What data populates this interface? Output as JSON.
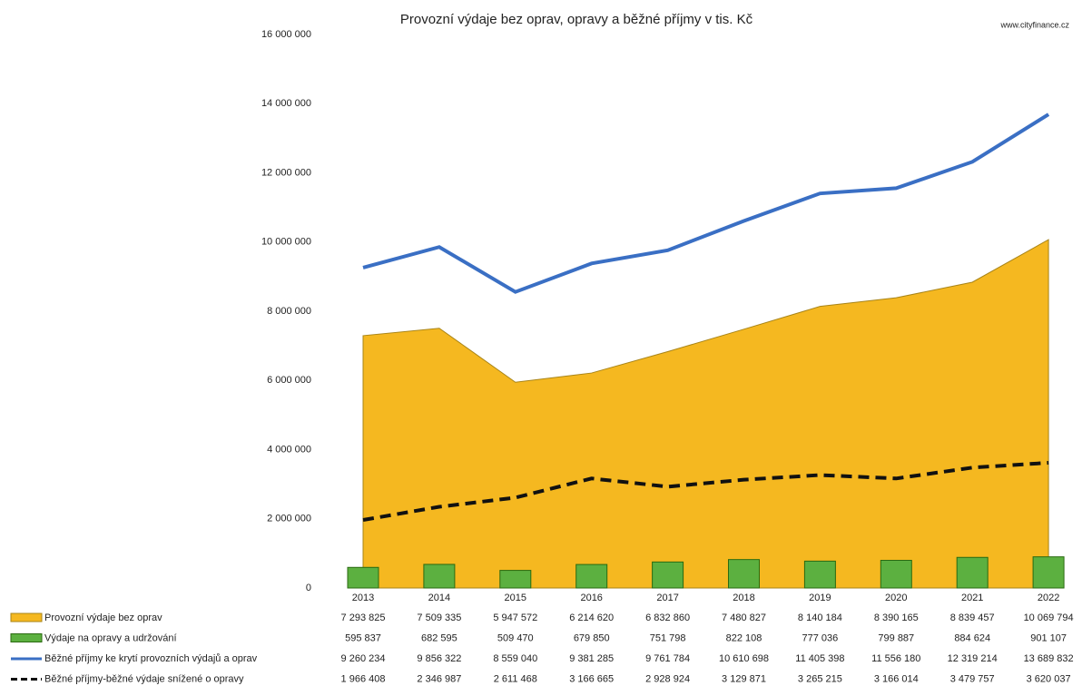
{
  "chart_data": {
    "type": "combo",
    "title": "Provozní výdaje bez oprav, opravy a běžné příjmy v tis. Kč",
    "source": "www.cityfinance.cz",
    "categories": [
      "2013",
      "2014",
      "2015",
      "2016",
      "2017",
      "2018",
      "2019",
      "2020",
      "2021",
      "2022"
    ],
    "ylim": [
      0,
      16000000
    ],
    "yticks": [
      {
        "value": 0,
        "label": "0"
      },
      {
        "value": 2000000,
        "label": "2 000 000"
      },
      {
        "value": 4000000,
        "label": "4 000 000"
      },
      {
        "value": 6000000,
        "label": "6 000 000"
      },
      {
        "value": 8000000,
        "label": "8 000 000"
      },
      {
        "value": 10000000,
        "label": "10 000 000"
      },
      {
        "value": 12000000,
        "label": "12 000 000"
      },
      {
        "value": 14000000,
        "label": "14 000 000"
      },
      {
        "value": 16000000,
        "label": "16 000 000"
      }
    ],
    "series": [
      {
        "name": "Provozní výdaje bez oprav",
        "type": "area",
        "color": "#f5b820",
        "values": [
          7293825,
          7509335,
          5947572,
          6214620,
          6832860,
          7480827,
          8140184,
          8390165,
          8839457,
          10069794
        ],
        "value_labels": [
          "7 293 825",
          "7 509 335",
          "5 947 572",
          "6 214 620",
          "6 832 860",
          "7 480 827",
          "8 140 184",
          "8 390 165",
          "8 839 457",
          "10 069 794"
        ]
      },
      {
        "name": "Výdaje na opravy a udržování",
        "type": "bar",
        "color": "#5cb040",
        "values": [
          595837,
          682595,
          509470,
          679850,
          751798,
          822108,
          777036,
          799887,
          884624,
          901107
        ],
        "value_labels": [
          "595 837",
          "682 595",
          "509 470",
          "679 850",
          "751 798",
          "822 108",
          "777 036",
          "799 887",
          "884 624",
          "901 107"
        ]
      },
      {
        "name": "Běžné příjmy ke krytí provozních výdajů a oprav",
        "type": "line",
        "color": "#3a6fc4",
        "values": [
          9260234,
          9856322,
          8559040,
          9381285,
          9761784,
          10610698,
          11405398,
          11556180,
          12319214,
          13689832
        ],
        "value_labels": [
          "9 260 234",
          "9 856 322",
          "8 559 040",
          "9 381 285",
          "9 761 784",
          "10 610 698",
          "11 405 398",
          "11 556 180",
          "12 319 214",
          "13 689 832"
        ]
      },
      {
        "name": "Běžné příjmy-běžné výdaje snížené o opravy",
        "type": "line",
        "line_style": "dashed",
        "color": "#111111",
        "values": [
          1966408,
          2346987,
          2611468,
          3166665,
          2928924,
          3129871,
          3265215,
          3166014,
          3479757,
          3620037
        ],
        "value_labels": [
          "1 966 408",
          "2 346 987",
          "2 611 468",
          "3 166 665",
          "2 928 924",
          "3 129 871",
          "3 265 215",
          "3 166 014",
          "3 479 757",
          "3 620 037"
        ]
      }
    ]
  }
}
